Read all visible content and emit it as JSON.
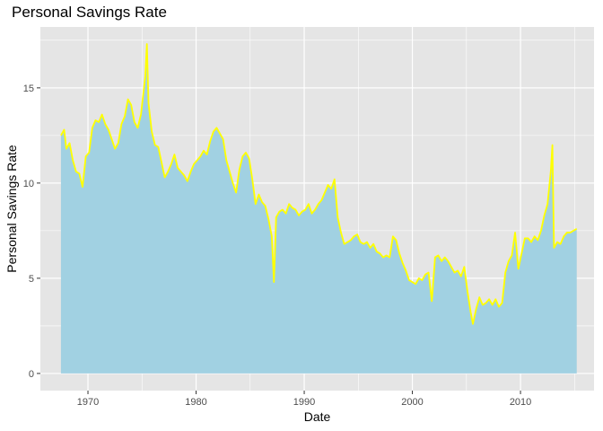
{
  "chart_data": {
    "type": "area",
    "title": "Personal Savings Rate",
    "xlabel": "Date",
    "ylabel": "Personal Savings Rate",
    "xlim": [
      1965.6,
      2016.8
    ],
    "ylim": [
      -0.9,
      18.2
    ],
    "x_ticks": [
      1970,
      1980,
      1990,
      2000,
      2010
    ],
    "y_ticks": [
      0,
      5,
      10,
      15
    ],
    "grid": true,
    "legend": "none",
    "fill_color": "#a1d1e2",
    "line_color": "#ffff00",
    "panel_color": "#e5e5e5",
    "series": [
      {
        "x": [
          1967.5,
          1967.8,
          1968.0,
          1968.3,
          1968.6,
          1968.9,
          1969.2,
          1969.5,
          1969.8,
          1970.1,
          1970.4,
          1970.7,
          1971.0,
          1971.3,
          1971.6,
          1971.9,
          1972.2,
          1972.5,
          1972.8,
          1973.1,
          1973.4,
          1973.7,
          1974.0,
          1974.3,
          1974.6,
          1974.9,
          1975.1,
          1975.3,
          1975.45,
          1975.6,
          1975.9,
          1976.2,
          1976.5,
          1976.8,
          1977.1,
          1977.4,
          1977.7,
          1978.0,
          1978.3,
          1978.6,
          1978.9,
          1979.2,
          1979.5,
          1979.8,
          1980.1,
          1980.4,
          1980.7,
          1981.0,
          1981.3,
          1981.6,
          1981.9,
          1982.2,
          1982.5,
          1982.8,
          1983.1,
          1983.4,
          1983.7,
          1984.0,
          1984.3,
          1984.6,
          1984.9,
          1985.2,
          1985.5,
          1985.8,
          1986.1,
          1986.4,
          1986.7,
          1987.0,
          1987.2,
          1987.4,
          1987.7,
          1988.0,
          1988.3,
          1988.6,
          1988.9,
          1989.2,
          1989.5,
          1989.8,
          1990.1,
          1990.4,
          1990.7,
          1991.0,
          1991.3,
          1991.6,
          1991.9,
          1992.2,
          1992.5,
          1992.8,
          1993.1,
          1993.4,
          1993.7,
          1994.0,
          1994.3,
          1994.6,
          1994.9,
          1995.2,
          1995.5,
          1995.8,
          1996.1,
          1996.4,
          1996.7,
          1997.0,
          1997.3,
          1997.6,
          1997.9,
          1998.2,
          1998.5,
          1998.8,
          1999.1,
          1999.4,
          1999.7,
          2000.0,
          2000.3,
          2000.6,
          2000.9,
          2001.2,
          2001.5,
          2001.8,
          2002.1,
          2002.4,
          2002.7,
          2003.0,
          2003.3,
          2003.6,
          2003.9,
          2004.2,
          2004.5,
          2004.8,
          2005.1,
          2005.4,
          2005.6,
          2005.9,
          2006.2,
          2006.5,
          2006.8,
          2007.1,
          2007.4,
          2007.7,
          2008.0,
          2008.3,
          2008.6,
          2008.9,
          2009.2,
          2009.5,
          2009.8,
          2010.1,
          2010.4,
          2010.7,
          2011.0,
          2011.3,
          2011.6,
          2011.9,
          2012.2,
          2012.5,
          2012.8,
          2012.95,
          2013.1,
          2013.4,
          2013.7,
          2014.0,
          2014.3,
          2014.6,
          2014.9,
          2015.2
        ],
        "values": [
          12.5,
          12.8,
          11.8,
          12.1,
          11.2,
          10.6,
          10.5,
          9.8,
          11.4,
          11.6,
          12.9,
          13.3,
          13.2,
          13.6,
          13.1,
          12.8,
          12.3,
          11.8,
          12.1,
          13.1,
          13.5,
          14.4,
          14.1,
          13.2,
          12.9,
          13.6,
          14.6,
          15.6,
          17.3,
          14.2,
          12.7,
          12.0,
          11.9,
          11.1,
          10.3,
          10.6,
          11.0,
          11.5,
          10.8,
          10.6,
          10.4,
          10.1,
          10.6,
          11.0,
          11.2,
          11.4,
          11.7,
          11.5,
          12.2,
          12.7,
          12.9,
          12.6,
          12.3,
          11.2,
          10.6,
          10.0,
          9.5,
          10.7,
          11.4,
          11.6,
          11.3,
          10.2,
          8.9,
          9.4,
          9.0,
          8.8,
          8.1,
          7.2,
          4.8,
          8.2,
          8.5,
          8.6,
          8.4,
          8.9,
          8.7,
          8.6,
          8.3,
          8.5,
          8.6,
          8.9,
          8.4,
          8.6,
          8.9,
          9.1,
          9.5,
          9.9,
          9.7,
          10.2,
          8.2,
          7.4,
          6.8,
          6.9,
          7.0,
          7.2,
          7.3,
          6.9,
          6.8,
          6.9,
          6.6,
          6.8,
          6.4,
          6.3,
          6.1,
          6.2,
          6.1,
          7.2,
          7.0,
          6.3,
          5.8,
          5.4,
          4.9,
          4.8,
          4.7,
          5.0,
          4.9,
          5.2,
          5.3,
          3.8,
          6.1,
          6.2,
          5.9,
          6.1,
          5.9,
          5.6,
          5.3,
          5.4,
          5.1,
          5.6,
          4.3,
          3.2,
          2.6,
          3.4,
          4.0,
          3.6,
          3.7,
          3.9,
          3.6,
          3.9,
          3.5,
          3.7,
          5.3,
          5.9,
          6.2,
          7.4,
          5.5,
          6.3,
          7.1,
          7.1,
          6.9,
          7.2,
          7.0,
          7.5,
          8.3,
          8.9,
          10.6,
          12.0,
          6.6,
          6.9,
          6.8,
          7.2,
          7.4,
          7.4,
          7.5,
          7.6
        ]
      }
    ]
  }
}
